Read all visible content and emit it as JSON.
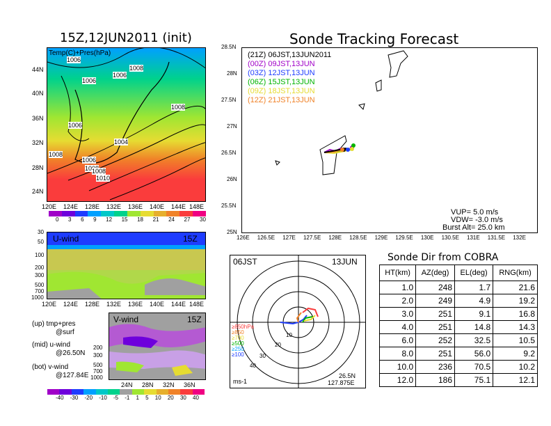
{
  "left_panel": {
    "title": "15Z,12JUN2011 (init)",
    "map_label": "Temp(C)+Pres(hPa)",
    "lat_ticks": [
      "44N",
      "40N",
      "36N",
      "32N",
      "28N",
      "24N"
    ],
    "lon_ticks": [
      "120E",
      "124E",
      "128E",
      "132E",
      "136E",
      "140E",
      "144E",
      "148E"
    ],
    "isobar_labels": [
      "1006",
      "1008",
      "1006",
      "1006",
      "1008",
      "1006",
      "1004",
      "1008",
      "1008",
      "1006",
      "1008",
      "1010"
    ],
    "temp_colorbar": [
      "0",
      "3",
      "6",
      "9",
      "12",
      "15",
      "18",
      "21",
      "24",
      "27",
      "30"
    ],
    "temp_colors": [
      "#a000c8",
      "#6e00dc",
      "#1e3cff",
      "#00a0ff",
      "#00c8c8",
      "#00d28c",
      "#a0e632",
      "#e6dc32",
      "#e6af2d",
      "#f08228",
      "#fa3c3c",
      "#f00082"
    ]
  },
  "uwind_panel": {
    "label": "U-wind",
    "time": "15Z",
    "y_ticks": [
      "30",
      "50",
      "100",
      "200",
      "300",
      "500",
      "700",
      "1000"
    ],
    "x_ticks": [
      "120E",
      "124E",
      "128E",
      "132E",
      "136E",
      "140E",
      "144E",
      "148E"
    ]
  },
  "vwind_panel": {
    "label": "V-wind",
    "time": "15Z",
    "y_ticks": [
      "200",
      "300",
      "500",
      "700",
      "1000"
    ],
    "x_ticks": [
      "24N",
      "28N",
      "32N",
      "36N"
    ],
    "colorbar": [
      "-40",
      "-30",
      "-20",
      "-10",
      "-5",
      "-1",
      "1",
      "5",
      "10",
      "20",
      "30",
      "40"
    ],
    "colors": [
      "#a000c8",
      "#6e00dc",
      "#1e3cff",
      "#00a0ff",
      "#00c8c8",
      "#00d28c",
      "#a0a0a0",
      "#a0e632",
      "#e6dc32",
      "#e6af2d",
      "#f08228",
      "#fa3c3c",
      "#f00082"
    ]
  },
  "legend_notes": {
    "up": "(up) tmp+pres",
    "up2": "@surf",
    "mid": "(mid) u-wind",
    "mid2": "@26.50N",
    "bot": "(bot) v-wind",
    "bot2": "@127.84E"
  },
  "tracking": {
    "title": "Sonde Tracking Forecast",
    "lat_ticks": [
      "28.5N",
      "28N",
      "27.5N",
      "27N",
      "26.5N",
      "26N",
      "25.5N",
      "25N"
    ],
    "lon_ticks": [
      "126E",
      "126.5E",
      "127E",
      "127.5E",
      "128E",
      "128.5E",
      "129E",
      "129.5E",
      "130E",
      "130.5E",
      "131E",
      "131.5E",
      "132E"
    ],
    "launches": [
      {
        "label": "(21Z) 06JST,13JUN2011",
        "color": "#000000"
      },
      {
        "label": "(00Z) 09JST,13JUN",
        "color": "#a000c8"
      },
      {
        "label": "(03Z) 12JST,13JUN",
        "color": "#1e3cff"
      },
      {
        "label": "(06Z) 15JST,13JUN",
        "color": "#00b400"
      },
      {
        "label": "(09Z) 18JST,13JUN",
        "color": "#e6dc32"
      },
      {
        "label": "(12Z) 21JST,13JUN",
        "color": "#f08228"
      }
    ],
    "vup": "VUP= 5.0 m/s",
    "vdw": "VDW= -3.0 m/s",
    "burst": "Burst Alt= 25.0 km"
  },
  "polar": {
    "left_label": "06JST",
    "right_label": "13JUN",
    "ring_labels": [
      "10",
      "20",
      "30",
      "40"
    ],
    "levels": [
      {
        "label": "≥850hPa",
        "color": "#fa3c3c"
      },
      {
        "label": "≥850",
        "color": "#f08228"
      },
      {
        "label": "≥700",
        "color": "#e6dc32"
      },
      {
        "label": "≥500",
        "color": "#00b400"
      },
      {
        "label": "≥250",
        "color": "#00a0ff"
      },
      {
        "label": "≥100",
        "color": "#1e3cff"
      }
    ],
    "units": "ms-1",
    "lat": "26.5N",
    "lon": "127.875E"
  },
  "sonde_table": {
    "title": "Sonde Dir from COBRA",
    "headers": [
      "HT(km)",
      "AZ(deg)",
      "EL(deg)",
      "RNG(km)"
    ],
    "rows": [
      [
        "1.0",
        "248",
        "1.7",
        "21.6"
      ],
      [
        "2.0",
        "249",
        "4.9",
        "19.2"
      ],
      [
        "3.0",
        "251",
        "9.1",
        "16.8"
      ],
      [
        "4.0",
        "251",
        "14.8",
        "14.3"
      ],
      [
        "6.0",
        "252",
        "32.5",
        "10.5"
      ],
      [
        "8.0",
        "251",
        "56.0",
        "9.2"
      ],
      [
        "10.0",
        "236",
        "70.5",
        "10.2"
      ],
      [
        "12.0",
        "186",
        "75.1",
        "12.1"
      ]
    ]
  },
  "chart_data": {
    "type": "table",
    "title": "Sonde Dir from COBRA",
    "columns": [
      "HT(km)",
      "AZ(deg)",
      "EL(deg)",
      "RNG(km)"
    ],
    "ht": [
      1.0,
      2.0,
      3.0,
      4.0,
      6.0,
      8.0,
      10.0,
      12.0
    ],
    "az": [
      248,
      249,
      251,
      251,
      252,
      251,
      236,
      186
    ],
    "el": [
      1.7,
      4.9,
      9.1,
      14.8,
      32.5,
      56.0,
      70.5,
      75.1
    ],
    "rng": [
      21.6,
      19.2,
      16.8,
      14.3,
      10.5,
      9.2,
      10.2,
      12.1
    ]
  }
}
